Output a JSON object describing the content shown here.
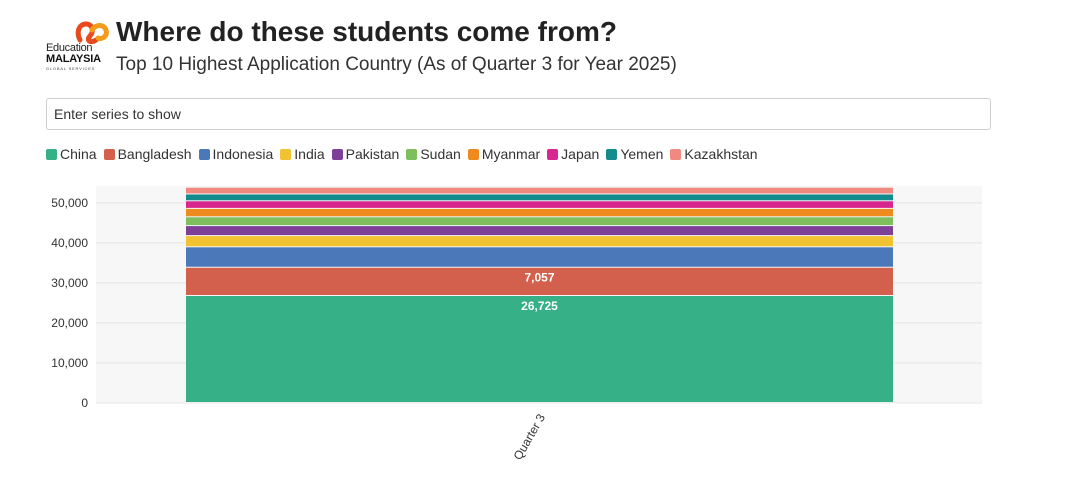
{
  "header": {
    "logo": {
      "line1": "Education",
      "line2": "MALAYSIA",
      "line3": "GLOBAL SERVICES"
    },
    "title": "Where do these students come from?",
    "subtitle": "Top 10 Highest Application Country (As of Quarter 3 for Year 2025)"
  },
  "controls": {
    "series_placeholder": "Enter series to show"
  },
  "colors": {
    "logo_accent_1": "#e8491d",
    "logo_accent_2": "#f59b1c",
    "plot_background": "#f7f7f7",
    "gridline": "#e6e6e6"
  },
  "chart_data": {
    "type": "bar",
    "stacked": true,
    "title": "Where do these students come from?",
    "subtitle": "Top 10 Highest Application Country (As of Quarter 3 for Year 2025)",
    "xlabel": "",
    "ylabel": "",
    "categories": [
      "Quarter 3"
    ],
    "ylim": [
      0,
      54200
    ],
    "yticks": [
      0,
      10000,
      20000,
      30000,
      40000,
      50000
    ],
    "ytick_labels": [
      "0",
      "10,000",
      "20,000",
      "30,000",
      "40,000",
      "50,000"
    ],
    "grid": true,
    "legend_position": "top-left",
    "series": [
      {
        "name": "China",
        "color": "#36b087",
        "values": [
          26725
        ],
        "label": "26,725"
      },
      {
        "name": "Bangladesh",
        "color": "#d35f4d",
        "values": [
          7057
        ],
        "label": "7,057"
      },
      {
        "name": "Indonesia",
        "color": "#4a78b8",
        "values": [
          5100
        ]
      },
      {
        "name": "India",
        "color": "#f1c232",
        "values": [
          2800
        ]
      },
      {
        "name": "Pakistan",
        "color": "#7d3f98",
        "values": [
          2500
        ]
      },
      {
        "name": "Sudan",
        "color": "#7cbf5c",
        "values": [
          2200
        ]
      },
      {
        "name": "Myanmar",
        "color": "#ee8a1e",
        "values": [
          2100
        ]
      },
      {
        "name": "Japan",
        "color": "#d8268f",
        "values": [
          1900
        ]
      },
      {
        "name": "Yemen",
        "color": "#138a8c",
        "values": [
          1700
        ]
      },
      {
        "name": "Kazakhstan",
        "color": "#f08a80",
        "values": [
          1700
        ]
      }
    ]
  }
}
